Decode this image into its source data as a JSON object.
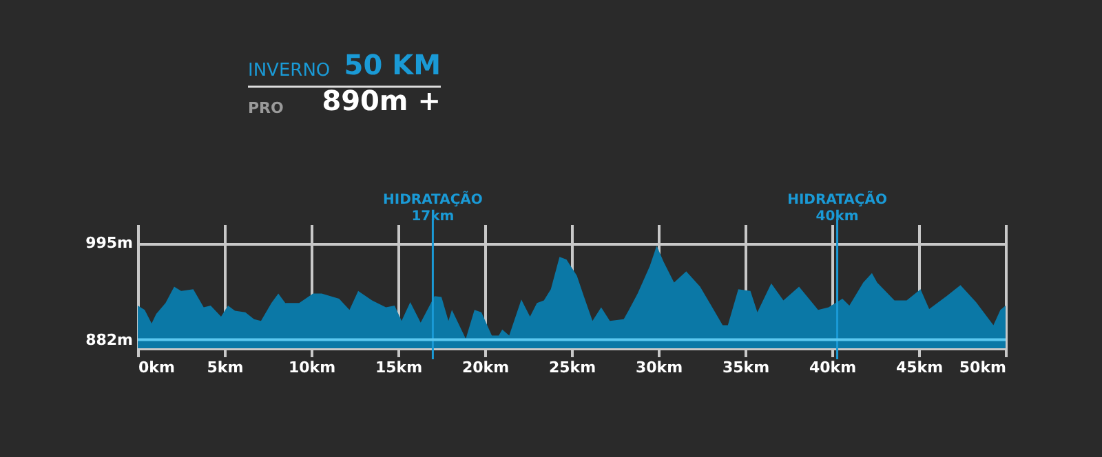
{
  "chart_data": {
    "type": "area",
    "annotations": [
      "INVERNO",
      "50 KM",
      "PRO",
      "890m +"
    ],
    "x": [
      0,
      0.4,
      0.8,
      1.06,
      1.6,
      2.1,
      2.5,
      3.2,
      3.8,
      4.2,
      4.8,
      5.2,
      5.6,
      6.2,
      6.7,
      7.1,
      7.7,
      8.1,
      8.5,
      9.3,
      10.1,
      10.6,
      11.6,
      12.2,
      12.7,
      13.5,
      14.3,
      14.8,
      15.2,
      15.7,
      16.3,
      17.1,
      17.5,
      17.9,
      18.1,
      18.9,
      19.4,
      19.8,
      20.4,
      20.8,
      21.0,
      21.4,
      22.1,
      22.6,
      23.0,
      23.4,
      23.8,
      24.3,
      24.7,
      25.3,
      25.7,
      26.2,
      26.7,
      27.2,
      28.0,
      28.3,
      28.8,
      29.5,
      29.9,
      30.3,
      30.9,
      31.6,
      32.4,
      33.1,
      33.7,
      34.0,
      34.6,
      35.3,
      35.7,
      36.5,
      37.2,
      38.1,
      39.2,
      39.8,
      40.6,
      41.0,
      41.8,
      42.3,
      42.6,
      43.6,
      44.3,
      45.1,
      45.6,
      46.6,
      47.4,
      48.3,
      49.3,
      49.7,
      50.0
    ],
    "series": [
      {
        "color": "#0b78a6",
        "values": [
          922,
          917,
          901,
          912,
          925,
          944,
          939,
          941,
          920,
          922,
          909,
          922,
          916,
          914,
          906,
          904,
          925,
          936,
          925,
          925,
          936,
          936,
          930,
          917,
          939,
          928,
          920,
          922,
          904,
          926,
          902,
          933,
          932,
          904,
          917,
          883,
          917,
          914,
          887,
          887,
          894,
          887,
          929,
          909,
          925,
          928,
          941,
          979,
          976,
          957,
          933,
          904,
          920,
          904,
          906,
          917,
          936,
          968,
          992,
          973,
          949,
          962,
          944,
          920,
          899,
          899,
          941,
          939,
          914,
          948,
          928,
          944,
          917,
          920,
          930,
          922,
          949,
          960,
          949,
          928,
          928,
          941,
          918,
          933,
          946,
          926,
          899,
          917,
          922
        ]
      }
    ],
    "xlim": [
      0,
      50
    ],
    "xticks": [
      {
        "value": 0,
        "label": "0km"
      },
      {
        "value": 5,
        "label": "5km"
      },
      {
        "value": 10,
        "label": "10km"
      },
      {
        "value": 15,
        "label": "15km"
      },
      {
        "value": 20,
        "label": "20km"
      },
      {
        "value": 25,
        "label": "25km"
      },
      {
        "value": 30,
        "label": "30km"
      },
      {
        "value": 35,
        "label": "35km"
      },
      {
        "value": 40,
        "label": "40km"
      },
      {
        "value": 45,
        "label": "45km"
      },
      {
        "value": 50,
        "label": "50km"
      }
    ],
    "ylim": [
      872,
      1017
    ],
    "yticks": [
      {
        "value": 882,
        "label": "882m"
      },
      {
        "value": 995,
        "label": "995m"
      }
    ],
    "grid": true,
    "ref_lines": [
      {
        "axis": "x",
        "value": 17,
        "label": "HIDRATAÇÃO\n17km",
        "color": "#1a9ad6"
      },
      {
        "axis": "x",
        "value": 40.3,
        "label": "HIDRATAÇÃO\n40km",
        "color": "#1a9ad6"
      },
      {
        "axis": "y",
        "value": 882,
        "color": "#5cc8f0"
      }
    ]
  }
}
